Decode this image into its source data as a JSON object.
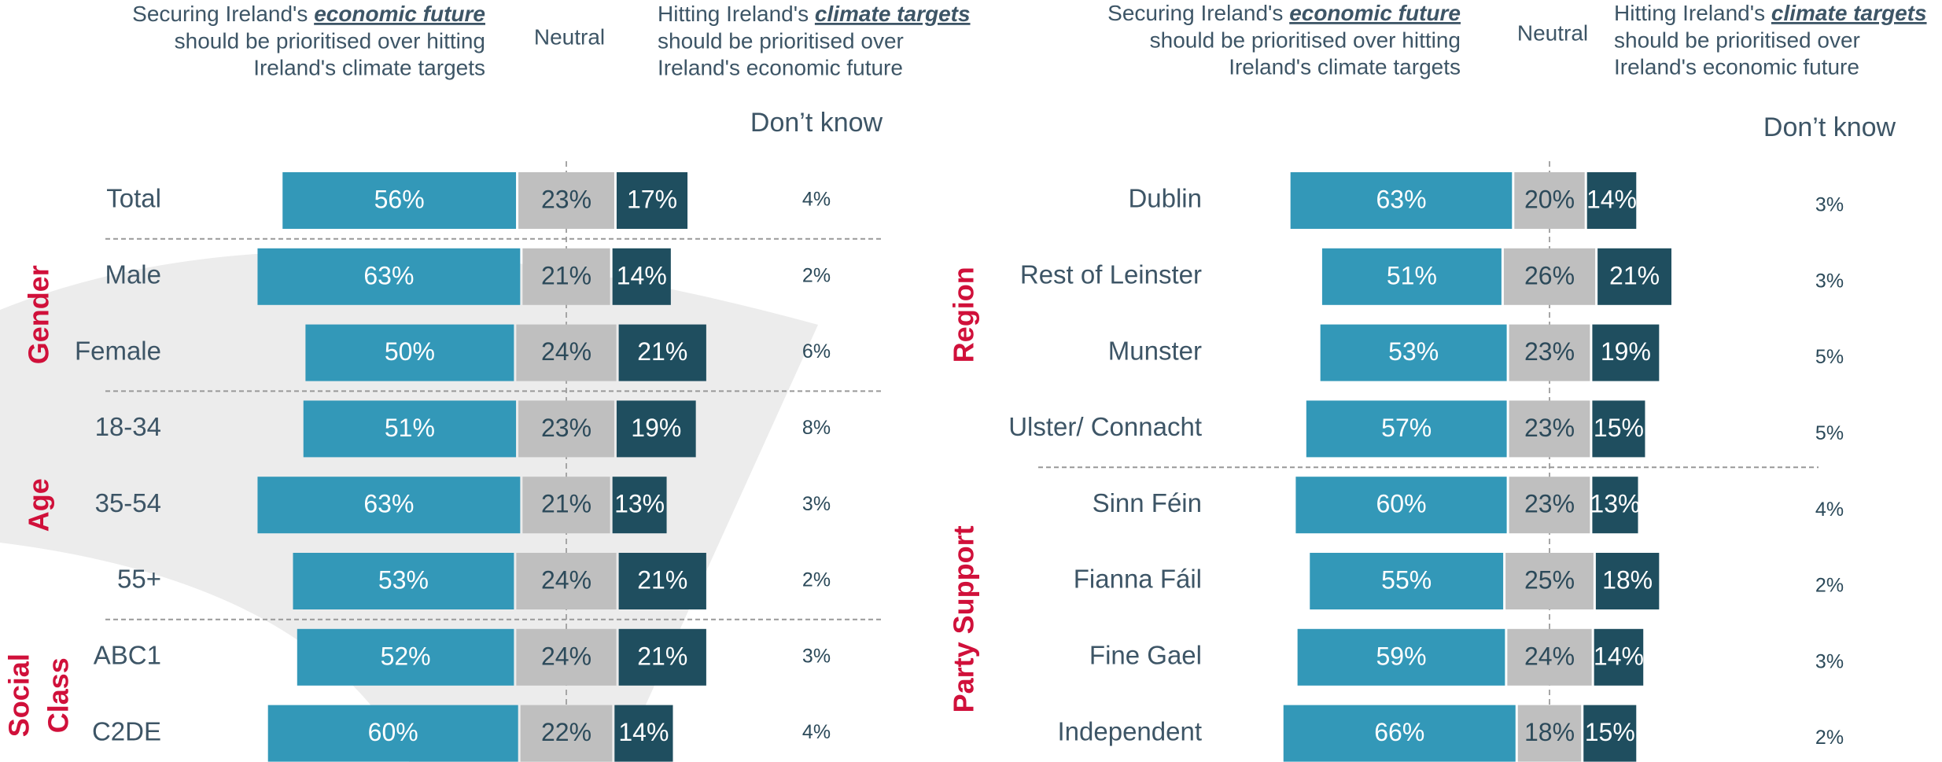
{
  "chart_data": [
    {
      "type": "diverging_bar",
      "categories": [
        "Total",
        "Male",
        "Female",
        "18-34",
        "35-54",
        "55+",
        "ABC1",
        "C2DE"
      ],
      "groups": [
        {
          "name": [
            "Gender"
          ],
          "rows": [
            1,
            2
          ]
        },
        {
          "name": [
            "Age"
          ],
          "rows": [
            3,
            5
          ]
        },
        {
          "name": [
            "Social",
            "Class"
          ],
          "rows": [
            6,
            7
          ]
        }
      ],
      "series": [
        {
          "name": [
            "Securing Ireland's ",
            "economic future",
            "should be prioritised over hitting",
            "Ireland's climate targets"
          ],
          "color": "#3398b8",
          "label_color": "#ffffff",
          "values": [
            56,
            63,
            50,
            51,
            63,
            53,
            52,
            60
          ],
          "value_labels": [
            "56%",
            "63%",
            "50%",
            "51%",
            "63%",
            "53%",
            "52%",
            "60%"
          ]
        },
        {
          "name": "Neutral",
          "color": "#bfbfbf",
          "label_color": "#2c4a5a",
          "values": [
            23,
            21,
            24,
            23,
            21,
            24,
            24,
            22
          ],
          "value_labels": [
            "23%",
            "21%",
            "24%",
            "23%",
            "21%",
            "24%",
            "24%",
            "22%"
          ]
        },
        {
          "name": [
            "Hitting Ireland's ",
            "climate targets",
            "should be prioritised over",
            "Ireland's economic future"
          ],
          "color": "#1f4e5f",
          "label_color": "#ffffff",
          "values": [
            17,
            14,
            21,
            19,
            13,
            21,
            21,
            14
          ],
          "value_labels": [
            "17%",
            "14%",
            "21%",
            "19%",
            "13%",
            "21%",
            "21%",
            "14%"
          ]
        },
        {
          "name": "Don’t know",
          "color": "#2c4a5a",
          "values": [
            4,
            2,
            6,
            8,
            3,
            2,
            3,
            4
          ],
          "value_labels": [
            "4%",
            "2%",
            "6%",
            "8%",
            "3%",
            "2%",
            "3%",
            "4%"
          ]
        }
      ]
    },
    {
      "type": "diverging_bar",
      "categories": [
        "Dublin",
        "Rest of Leinster",
        "Munster",
        "Ulster/ Connacht",
        "Sinn Féin",
        "Fianna Fáil",
        "Fine Gael",
        "Independent"
      ],
      "groups": [
        {
          "name": [
            "Region"
          ],
          "rows": [
            0,
            3
          ]
        },
        {
          "name": [
            "Party Support"
          ],
          "rows": [
            4,
            7
          ]
        }
      ],
      "series": [
        {
          "name": [
            "Securing Ireland's ",
            "economic future",
            "should be prioritised over hitting",
            "Ireland's climate targets"
          ],
          "color": "#3398b8",
          "label_color": "#ffffff",
          "values": [
            63,
            51,
            53,
            57,
            60,
            55,
            59,
            66
          ],
          "value_labels": [
            "63%",
            "51%",
            "53%",
            "57%",
            "60%",
            "55%",
            "59%",
            "66%"
          ]
        },
        {
          "name": "Neutral",
          "color": "#bfbfbf",
          "label_color": "#2c4a5a",
          "values": [
            20,
            26,
            23,
            23,
            23,
            25,
            24,
            18
          ],
          "value_labels": [
            "20%",
            "26%",
            "23%",
            "23%",
            "23%",
            "25%",
            "24%",
            "18%"
          ]
        },
        {
          "name": [
            "Hitting Ireland's ",
            "climate targets",
            "should be prioritised over",
            "Ireland's economic future"
          ],
          "color": "#1f4e5f",
          "label_color": "#ffffff",
          "values": [
            14,
            21,
            19,
            15,
            13,
            18,
            14,
            15
          ],
          "value_labels": [
            "14%",
            "21%",
            "19%",
            "15%",
            "13%",
            "18%",
            "14%",
            "15%"
          ]
        },
        {
          "name": "Don’t know",
          "color": "#2c4a5a",
          "values": [
            3,
            3,
            5,
            5,
            4,
            2,
            3,
            2
          ],
          "value_labels": [
            "3%",
            "3%",
            "5%",
            "5%",
            "4%",
            "2%",
            "3%",
            "2%"
          ]
        }
      ]
    }
  ]
}
